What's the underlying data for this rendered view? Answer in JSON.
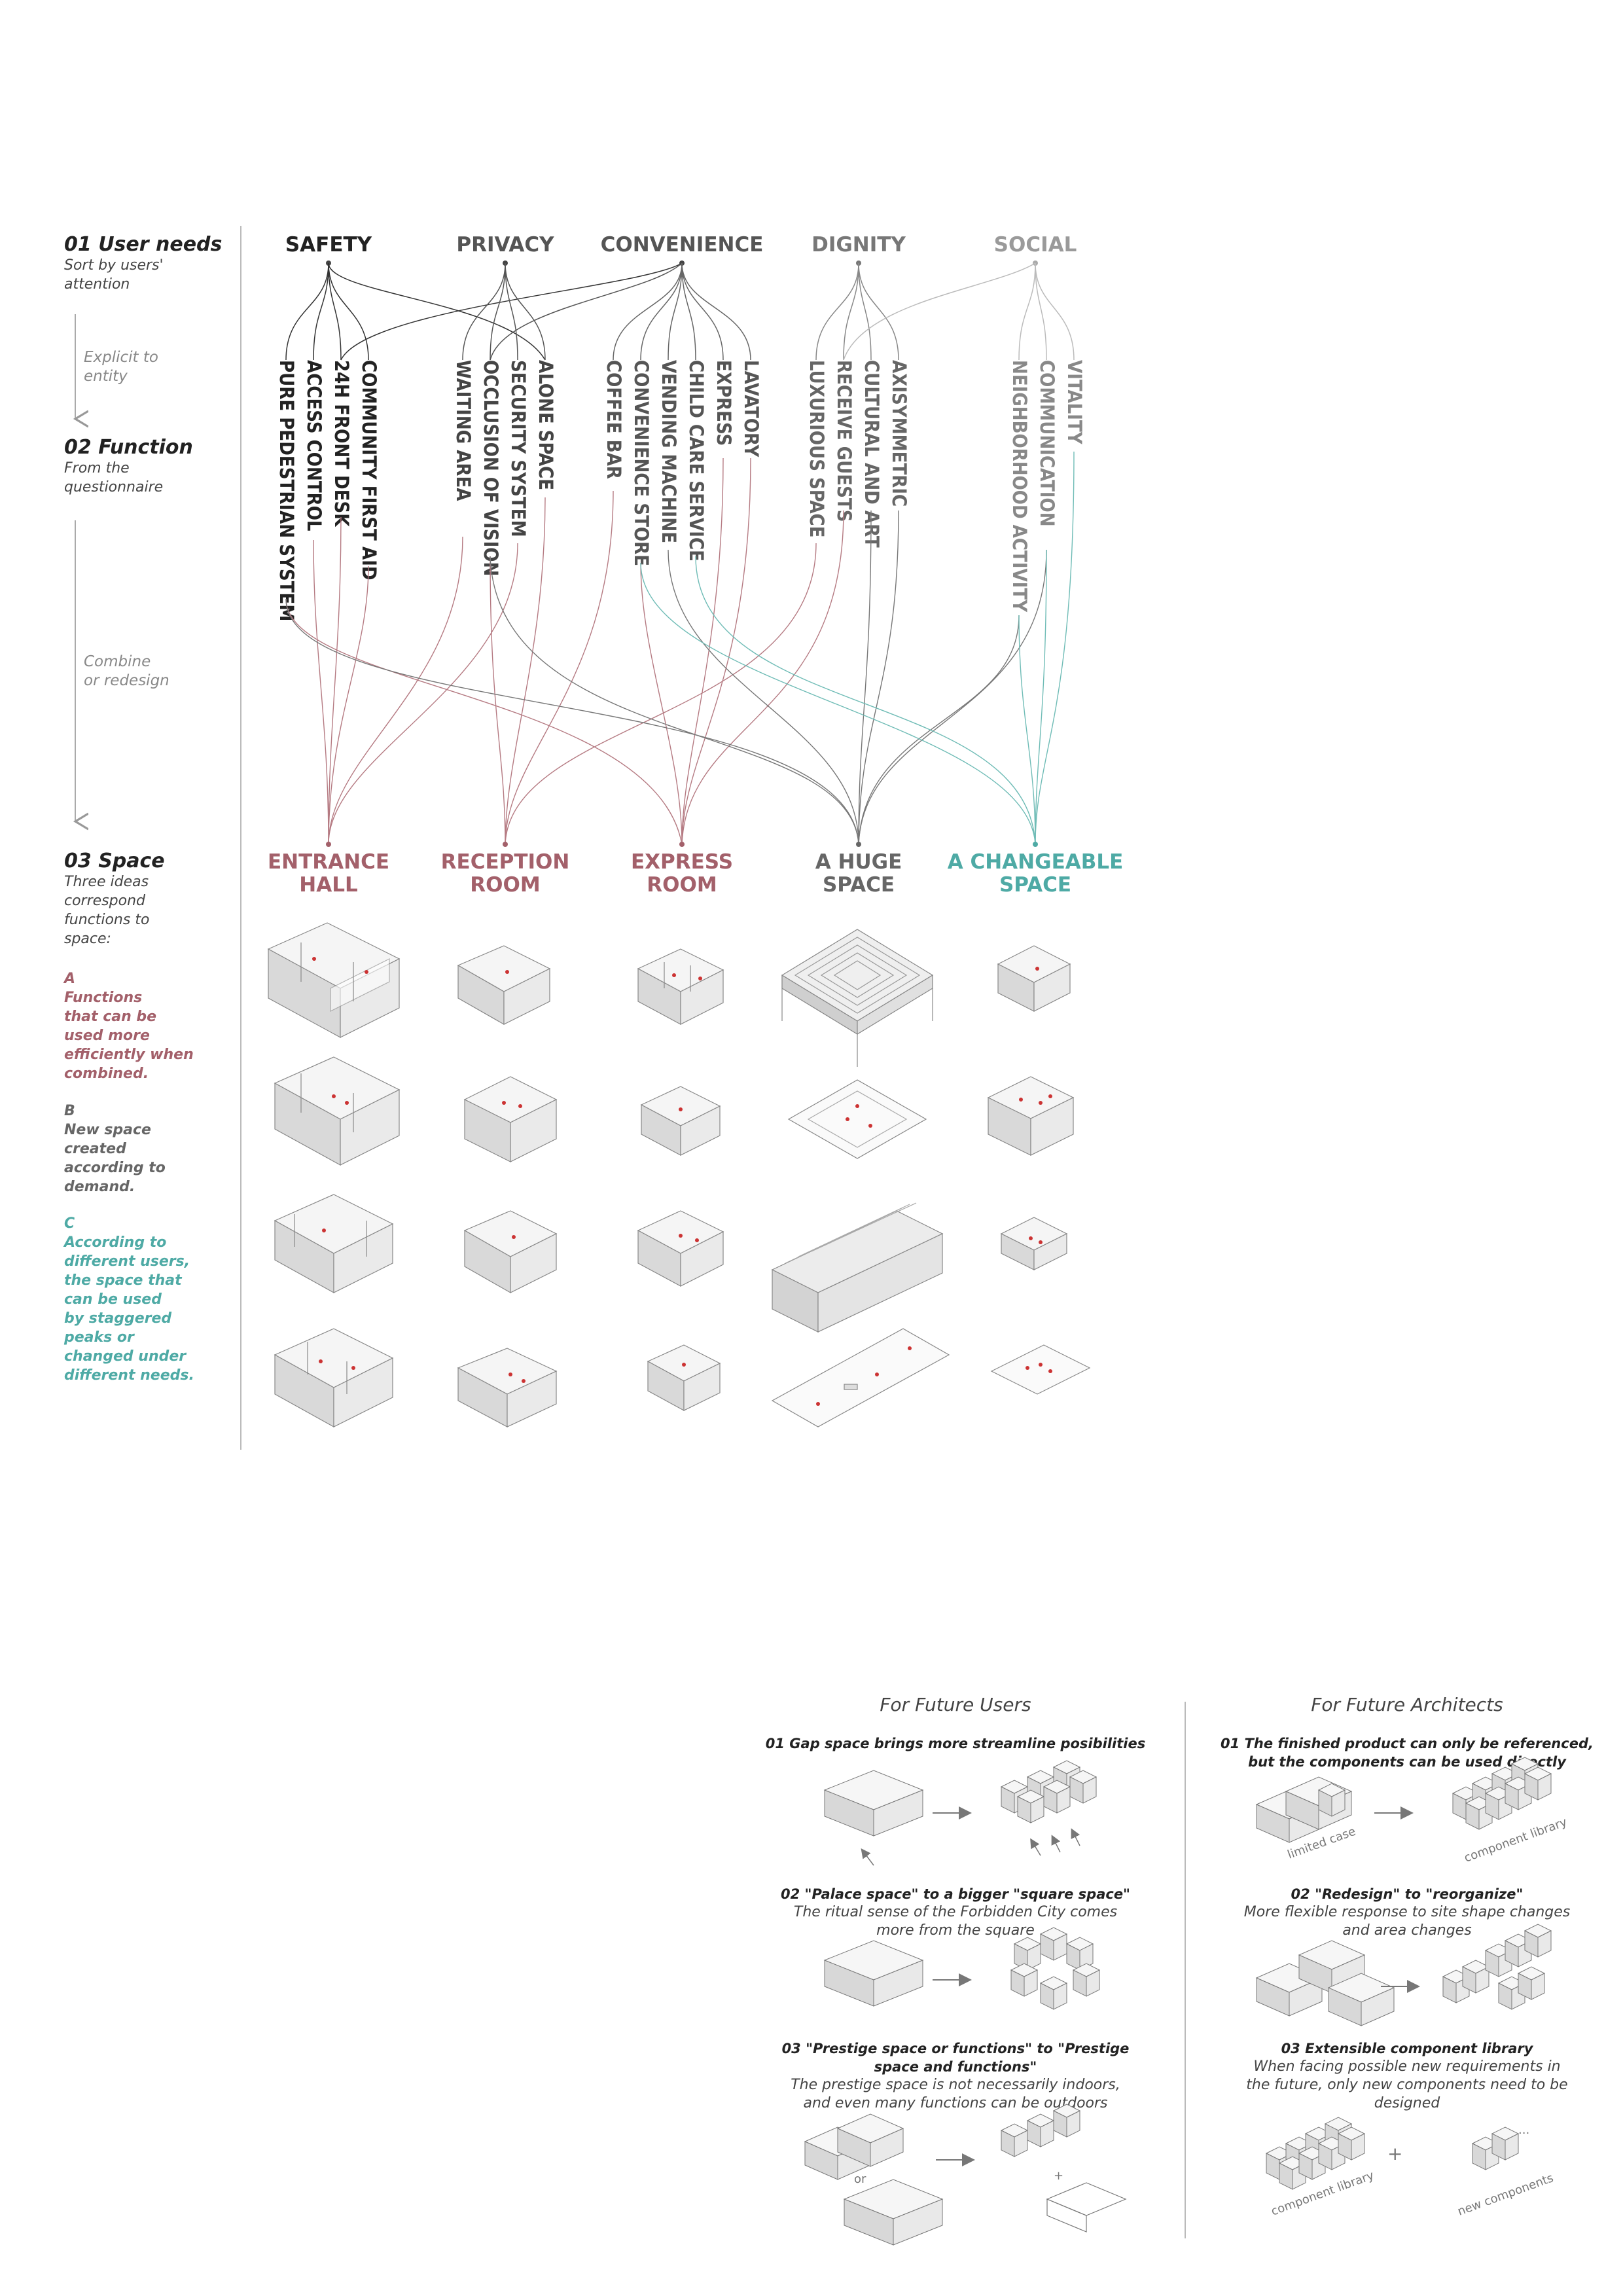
{
  "sections": {
    "s1": {
      "title": "01 User needs",
      "sub": [
        "Sort by users'",
        "attention"
      ]
    },
    "s2": {
      "title": "02 Function",
      "sub": [
        "From the",
        "questionnaire"
      ]
    },
    "s3": {
      "title": "03 Space",
      "sub": [
        "Three ideas",
        "correspond",
        "functions to",
        "space:"
      ]
    }
  },
  "steps": {
    "explicit": [
      "Explicit to",
      "entity"
    ],
    "combine": [
      "Combine",
      "or redesign"
    ]
  },
  "needs": [
    "SAFETY",
    "PRIVACY",
    "CONVENIENCE",
    "DIGNITY",
    "SOCIAL"
  ],
  "functions": [
    "PURE PEDESTRIAN SYSTEM",
    "ACCESS CONTROL",
    "24H FRONT DESK",
    "COMMUNITY FIRST AID",
    "WAITING AREA",
    "OCCLUSION OF VISION",
    "SECURITY SYSTEM",
    "ALONE SPACE",
    "COFFEE BAR",
    "CONVENIENCE STORE",
    "VENDING MACHINE",
    "CHILD CARE SERVICE",
    "EXPRESS",
    "LAVATORY",
    "LUXURIOUS SPACE",
    "RECEIVE GUESTS",
    "CULTURAL AND ART",
    "AXISYMMETRIC",
    "NEIGHBORHOOD ACTIVITY",
    "COMMUNICATION",
    "VITALITY"
  ],
  "spaces": [
    [
      "ENTRANCE",
      "HALL"
    ],
    [
      "RECEPTION",
      "ROOM"
    ],
    [
      "EXPRESS",
      "ROOM"
    ],
    [
      "A HUGE",
      "SPACE"
    ],
    [
      "A CHANGEABLE",
      "SPACE"
    ]
  ],
  "ideas": {
    "a": [
      "A",
      "Functions",
      "that can be",
      "used more",
      "efficiently when",
      "combined."
    ],
    "b": [
      "B",
      "New space",
      "created",
      "according to",
      "demand."
    ],
    "c": [
      "C",
      "According to",
      "different users,",
      "the space that",
      "can be used",
      "by staggered",
      "peaks or",
      "changed under",
      "different needs."
    ]
  },
  "future_users": {
    "heading": "For Future Users",
    "items": [
      {
        "title": [
          "01 Gap space brings more streamline posibilities"
        ],
        "desc": []
      },
      {
        "title": [
          "02 \"Palace space\" to a bigger \"square space\""
        ],
        "desc": [
          "The ritual sense of the Forbidden City comes",
          "more from the square"
        ]
      },
      {
        "title": [
          "03 \"Prestige space or functions\" to   \"Prestige",
          "space and functions\""
        ],
        "desc": [
          "The prestige space is not necessarily indoors,",
          "and even many functions can be outdoors"
        ]
      }
    ],
    "or_label": "or",
    "plus_label": "+"
  },
  "future_architects": {
    "heading": "For Future Architects",
    "items": [
      {
        "title": [
          "01 The finished product can only be referenced,",
          "but the components can be used directly"
        ],
        "desc": []
      },
      {
        "title": [
          "02 \"Redesign\" to \"reorganize\""
        ],
        "desc": [
          "More flexible response to site shape changes",
          "and area changes"
        ]
      },
      {
        "title": [
          "03 Extensible component library"
        ],
        "desc": [
          "When facing possible new requirements in",
          "the future, only new components need to be",
          "designed"
        ]
      }
    ],
    "labels": {
      "limited": "limited case",
      "library": "component library",
      "new": "new components",
      "plus": "+",
      "dots": "..."
    }
  },
  "colors": {
    "red": "#a3606a",
    "teal": "#4eaaa5",
    "dark": "#222222",
    "gray": "#666666",
    "lightgray": "#9a9a9a"
  }
}
